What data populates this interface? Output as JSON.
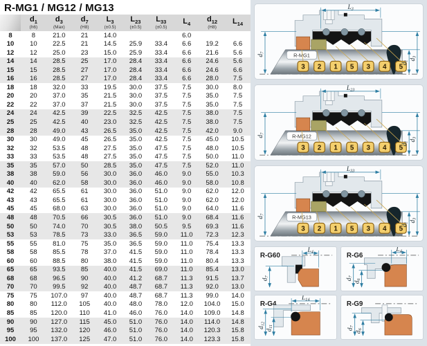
{
  "title": "R-MG1 / MG12 / MG13",
  "colors": {
    "accent-dim": "#2e7ea3",
    "seal-orange": "#d6854e",
    "seal-olive": "#a9a465",
    "tag-yellow": "#f4cf6d",
    "tag-border": "#8a6114",
    "rubber-black": "#141414",
    "housing-fill": "#e2e8ec",
    "housing-stroke": "#8a9aa6",
    "panel-bg": "#dce2e8",
    "card-bg": "#fbfcfd",
    "band-gray": "#e7e7e7",
    "header-gray": "#d8d8d8"
  },
  "table": {
    "columns": [
      {
        "main": "d",
        "sub": "1",
        "note": "(h6)"
      },
      {
        "main": "d",
        "sub": "3",
        "note": "(Max)"
      },
      {
        "main": "d",
        "sub": "7",
        "note": "(H8)"
      },
      {
        "main": "L",
        "sub": "3",
        "note": "(±0.5)"
      },
      {
        "main": "L",
        "sub": "23",
        "note": "(±0.5)"
      },
      {
        "main": "L",
        "sub": "33",
        "note": "(±0.5)"
      },
      {
        "main": "L",
        "sub": "4",
        "note": ""
      },
      {
        "main": "d",
        "sub": "12",
        "note": "(H8)"
      },
      {
        "main": "L",
        "sub": "14",
        "note": ""
      }
    ],
    "rows": [
      [
        "8",
        "8",
        "21.0",
        "21",
        "14.0",
        "",
        "",
        "6.0",
        "",
        ""
      ],
      [
        "10",
        "10",
        "22.5",
        "21",
        "14.5",
        "25.9",
        "33.4",
        "6.6",
        "19.2",
        "6.6"
      ],
      [
        "12",
        "12",
        "25.0",
        "23",
        "15.0",
        "25.9",
        "33.4",
        "6.6",
        "21.6",
        "5.6"
      ],
      [
        "14",
        "14",
        "28.5",
        "25",
        "17.0",
        "28.4",
        "33.4",
        "6.6",
        "24.6",
        "5.6"
      ],
      [
        "15",
        "15",
        "28.5",
        "27",
        "17.0",
        "28.4",
        "33.4",
        "6.6",
        "24.6",
        "6.6"
      ],
      [
        "16",
        "16",
        "28.5",
        "27",
        "17.0",
        "28.4",
        "33.4",
        "6.6",
        "28.0",
        "7.5"
      ],
      [
        "18",
        "18",
        "32.0",
        "33",
        "19.5",
        "30.0",
        "37.5",
        "7.5",
        "30.0",
        "8.0"
      ],
      [
        "20",
        "20",
        "37.0",
        "35",
        "21.5",
        "30.0",
        "37.5",
        "7.5",
        "35.0",
        "7.5"
      ],
      [
        "22",
        "22",
        "37.0",
        "37",
        "21.5",
        "30.0",
        "37.5",
        "7.5",
        "35.0",
        "7.5"
      ],
      [
        "24",
        "24",
        "42.5",
        "39",
        "22.5",
        "32.5",
        "42.5",
        "7.5",
        "38.0",
        "7.5"
      ],
      [
        "25",
        "25",
        "42.5",
        "40",
        "23.0",
        "32.5",
        "42.5",
        "7.5",
        "38.0",
        "7.5"
      ],
      [
        "28",
        "28",
        "49.0",
        "43",
        "26.5",
        "35.0",
        "42.5",
        "7.5",
        "42.0",
        "9.0"
      ],
      [
        "30",
        "30",
        "49.0",
        "45",
        "26.5",
        "35.0",
        "42.5",
        "7.5",
        "45.0",
        "10.5"
      ],
      [
        "32",
        "32",
        "53.5",
        "48",
        "27.5",
        "35.0",
        "47.5",
        "7.5",
        "48.0",
        "10.5"
      ],
      [
        "33",
        "33",
        "53.5",
        "48",
        "27.5",
        "35.0",
        "47.5",
        "7.5",
        "50.0",
        "11.0"
      ],
      [
        "35",
        "35",
        "57.0",
        "50",
        "28.5",
        "35.0",
        "47.5",
        "7.5",
        "52.0",
        "11.0"
      ],
      [
        "38",
        "38",
        "59.0",
        "56",
        "30.0",
        "36.0",
        "46.0",
        "9.0",
        "55.0",
        "10.3"
      ],
      [
        "40",
        "40",
        "62.0",
        "58",
        "30.0",
        "36.0",
        "46.0",
        "9.0",
        "58.0",
        "10.8"
      ],
      [
        "42",
        "42",
        "65.5",
        "61",
        "30.0",
        "36.0",
        "51.0",
        "9.0",
        "62.0",
        "12.0"
      ],
      [
        "43",
        "43",
        "65.5",
        "61",
        "30.0",
        "36.0",
        "51.0",
        "9.0",
        "62.0",
        "12.0"
      ],
      [
        "45",
        "45",
        "68.0",
        "63",
        "30.0",
        "36.0",
        "51.0",
        "9.0",
        "64.0",
        "11.6"
      ],
      [
        "48",
        "48",
        "70.5",
        "66",
        "30.5",
        "36.0",
        "51.0",
        "9.0",
        "68.4",
        "11.6"
      ],
      [
        "50",
        "50",
        "74.0",
        "70",
        "30.5",
        "38.0",
        "50.5",
        "9.5",
        "69.3",
        "11.6"
      ],
      [
        "53",
        "53",
        "78.5",
        "73",
        "33.0",
        "36.5",
        "59.0",
        "11.0",
        "72.3",
        "12.3"
      ],
      [
        "55",
        "55",
        "81.0",
        "75",
        "35.0",
        "36.5",
        "59.0",
        "11.0",
        "75.4",
        "13.3"
      ],
      [
        "58",
        "58",
        "85.5",
        "78",
        "37.0",
        "41.5",
        "59.0",
        "11.0",
        "78.4",
        "13.3"
      ],
      [
        "60",
        "60",
        "88.5",
        "80",
        "38.0",
        "41.5",
        "59.0",
        "11.0",
        "80.4",
        "13.3"
      ],
      [
        "65",
        "65",
        "93.5",
        "85",
        "40.0",
        "41.5",
        "69.0",
        "11.0",
        "85.4",
        "13.0"
      ],
      [
        "68",
        "68",
        "96.5",
        "90",
        "40.0",
        "41.2",
        "68.7",
        "11.3",
        "91.5",
        "13.7"
      ],
      [
        "70",
        "70",
        "99.5",
        "92",
        "40.0",
        "48.7",
        "68.7",
        "11.3",
        "92.0",
        "13.0"
      ],
      [
        "75",
        "75",
        "107.0",
        "97",
        "40.0",
        "48.7",
        "68.7",
        "11.3",
        "99.0",
        "14.0"
      ],
      [
        "80",
        "80",
        "112.0",
        "105",
        "40.0",
        "48.0",
        "78.0",
        "12.0",
        "104.0",
        "15.0"
      ],
      [
        "85",
        "85",
        "120.0",
        "110",
        "41.0",
        "46.0",
        "76.0",
        "14.0",
        "109.0",
        "14.8"
      ],
      [
        "90",
        "90",
        "127.0",
        "115",
        "45.0",
        "51.0",
        "76.0",
        "14.0",
        "114.0",
        "14.8"
      ],
      [
        "95",
        "95",
        "132.0",
        "120",
        "46.0",
        "51.0",
        "76.0",
        "14.0",
        "120.3",
        "15.8"
      ],
      [
        "100",
        "100",
        "137.0",
        "125",
        "47.0",
        "51.0",
        "76.0",
        "14.0",
        "123.3",
        "15.8"
      ]
    ]
  },
  "diagrams": [
    {
      "label": "R-MG1",
      "top_dim": {
        "main": "L",
        "sub": "3"
      },
      "left_dim": {
        "main": "d",
        "sub": "7"
      },
      "right_dim_inner": {
        "main": "d",
        "sub": "1"
      },
      "right_dim_outer": {
        "main": "d",
        "sub": "3"
      },
      "tags": [
        "3",
        "2",
        "1",
        "5",
        "3",
        "4",
        "5"
      ]
    },
    {
      "label": "R-MG12",
      "top_dim": {
        "main": "L",
        "sub": "23"
      },
      "left_dim": {
        "main": "d",
        "sub": "7"
      },
      "right_dim_inner": {
        "main": "d",
        "sub": "1"
      },
      "right_dim_outer": {
        "main": "d",
        "sub": "3"
      },
      "tags": [
        "3",
        "2",
        "1",
        "5",
        "3",
        "4",
        "5"
      ]
    },
    {
      "label": "R-MG13",
      "top_dim": {
        "main": "L",
        "sub": "33"
      },
      "left_dim": {
        "main": "d",
        "sub": "7"
      },
      "right_dim_inner": {
        "main": "d",
        "sub": "1"
      },
      "right_dim_outer": {
        "main": "d",
        "sub": "3"
      },
      "tags": [
        "3",
        "2",
        "1",
        "5",
        "3",
        "4",
        "5"
      ]
    }
  ],
  "seats": [
    {
      "label": "R-G60",
      "top_dim": {
        "main": "L",
        "sub": "4"
      },
      "dims": [
        {
          "main": "d",
          "sub": "7"
        }
      ]
    },
    {
      "label": "R-G6",
      "top_dim": {
        "main": "L",
        "sub": "4"
      },
      "dims": [
        {
          "main": "d",
          "sub": "7"
        },
        {
          "main": "d",
          "sub": "6"
        }
      ]
    },
    {
      "label": "R-G4",
      "top_dim": {
        "main": "L",
        "sub": "14"
      },
      "dims": [
        {
          "main": "d",
          "sub": "12"
        },
        {
          "main": "d",
          "sub": "11"
        }
      ]
    },
    {
      "label": "R-G9",
      "top_dim": null,
      "dims": [
        {
          "main": "d",
          "sub": "7"
        },
        {
          "main": "d",
          "sub": "6"
        }
      ]
    }
  ]
}
